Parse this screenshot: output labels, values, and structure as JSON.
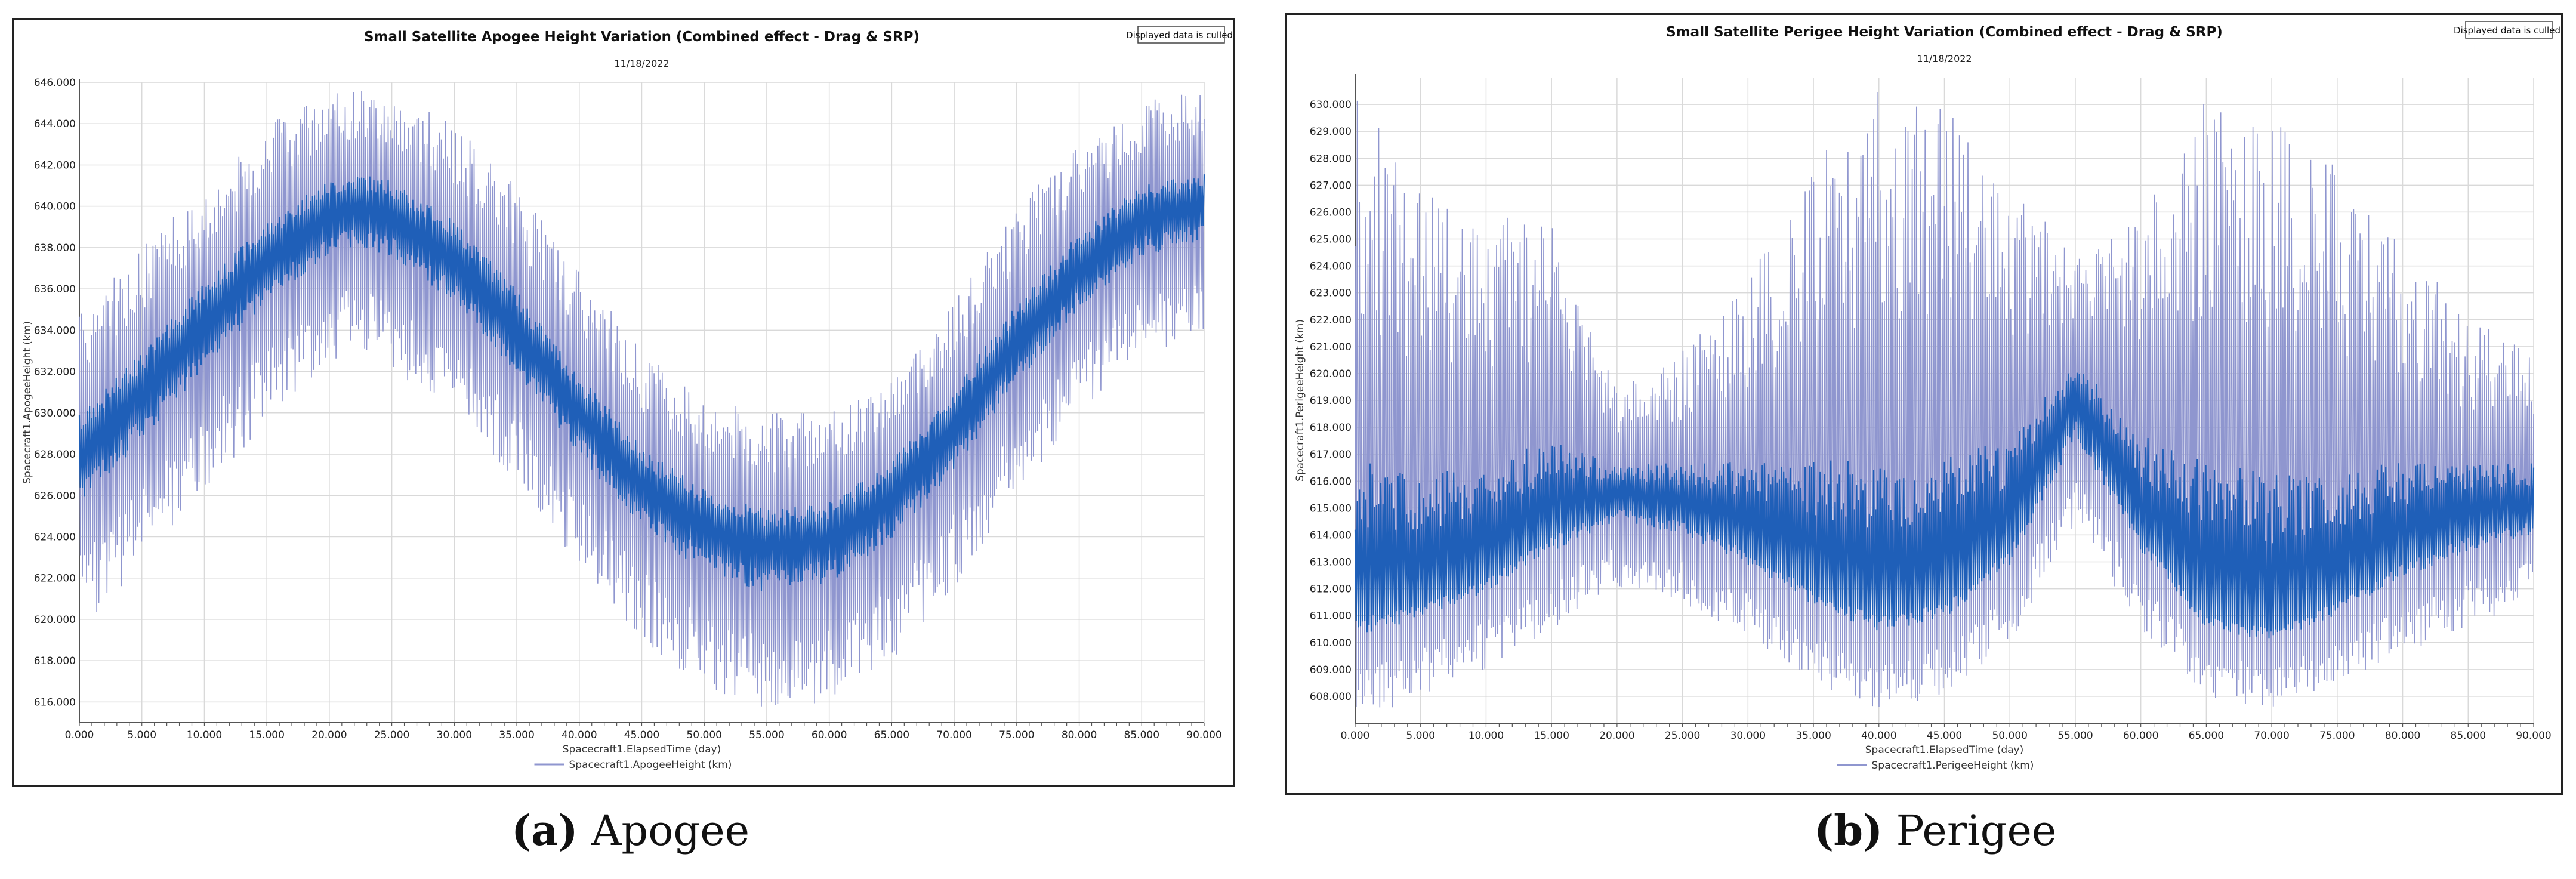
{
  "colors": {
    "series": "#1f5fb8",
    "series_light": "#8f96cf",
    "grid": "#d9d9d9",
    "axis": "#555555"
  },
  "captions": [
    {
      "letter": "(a)",
      "text": "Apogee"
    },
    {
      "letter": "(b)",
      "text": "Perigee"
    }
  ],
  "chart_data": [
    {
      "type": "line",
      "title": "Small Satellite Apogee Height Variation (Combined effect - Drag & SRP)",
      "subtitle": "11/18/2022",
      "xlabel": "Spacecraft1.ElapsedTime (day)",
      "ylabel": "Spacecraft1.ApogeeHeight (km)",
      "xlim": [
        0,
        90
      ],
      "ylim": [
        615,
        646
      ],
      "x_ticks": [
        0,
        5,
        10,
        15,
        20,
        25,
        30,
        35,
        40,
        45,
        50,
        55,
        60,
        65,
        70,
        75,
        80,
        85,
        90
      ],
      "x_tick_labels": [
        "0.000",
        "5.000",
        "10.000",
        "15.000",
        "20.000",
        "25.000",
        "30.000",
        "35.000",
        "40.000",
        "45.000",
        "50.000",
        "55.000",
        "60.000",
        "65.000",
        "70.000",
        "75.000",
        "80.000",
        "85.000",
        "90.000"
      ],
      "y_ticks": [
        616,
        618,
        620,
        622,
        624,
        626,
        628,
        630,
        632,
        634,
        636,
        638,
        640,
        642,
        644,
        646
      ],
      "y_tick_labels": [
        "616.000",
        "618.000",
        "620.000",
        "622.000",
        "624.000",
        "626.000",
        "628.000",
        "630.000",
        "632.000",
        "634.000",
        "636.000",
        "638.000",
        "640.000",
        "642.000",
        "644.000",
        "646.000"
      ],
      "grid": true,
      "legend": "bottom-center",
      "notice": "Displayed data is culled!",
      "series": [
        {
          "name": "Spacecraft1.ApogeeHeight (km)",
          "x": [
            0,
            5,
            10,
            15,
            20,
            22.5,
            25,
            30,
            35,
            40,
            45,
            50,
            55,
            60,
            65,
            70,
            75,
            80,
            85,
            90
          ],
          "mean": [
            628,
            631,
            634.5,
            637.5,
            639.7,
            640,
            639.6,
            637.5,
            634,
            630,
            626.5,
            624.5,
            623.5,
            624,
            626,
            629.5,
            633.5,
            637,
            639.5,
            640
          ],
          "upper": [
            635,
            638,
            641,
            644,
            645.5,
            646,
            645.5,
            644,
            641,
            637,
            633,
            631,
            630,
            630,
            632,
            635.5,
            640,
            643,
            645,
            646
          ],
          "lower": [
            619.5,
            622.5,
            626,
            629.5,
            632.5,
            633,
            632,
            630,
            626.5,
            622.5,
            619,
            616.5,
            615.5,
            616,
            618,
            621.5,
            626,
            630,
            632.5,
            634
          ]
        }
      ]
    },
    {
      "type": "line",
      "title": "Small Satellite Perigee Height Variation (Combined effect - Drag & SRP)",
      "subtitle": "11/18/2022",
      "xlabel": "Spacecraft1.ElapsedTime (day)",
      "ylabel": "Spacecraft1.PerigeeHeight (km)",
      "xlim": [
        0,
        90
      ],
      "ylim": [
        607,
        631
      ],
      "x_ticks": [
        0,
        5,
        10,
        15,
        20,
        25,
        30,
        35,
        40,
        45,
        50,
        55,
        60,
        65,
        70,
        75,
        80,
        85,
        90
      ],
      "x_tick_labels": [
        "0.000",
        "5.000",
        "10.000",
        "15.000",
        "20.000",
        "25.000",
        "30.000",
        "35.000",
        "40.000",
        "45.000",
        "50.000",
        "55.000",
        "60.000",
        "65.000",
        "70.000",
        "75.000",
        "80.000",
        "85.000",
        "90.000"
      ],
      "y_ticks": [
        608,
        609,
        610,
        611,
        612,
        613,
        614,
        615,
        616,
        617,
        618,
        619,
        620,
        621,
        622,
        623,
        624,
        625,
        626,
        627,
        628,
        629,
        630
      ],
      "y_tick_labels": [
        "608.000",
        "609.000",
        "610.000",
        "611.000",
        "612.000",
        "613.000",
        "614.000",
        "615.000",
        "616.000",
        "617.000",
        "618.000",
        "619.000",
        "620.000",
        "621.000",
        "622.000",
        "623.000",
        "624.000",
        "625.000",
        "626.000",
        "627.000",
        "628.000",
        "629.000",
        "630.000"
      ],
      "grid": true,
      "legend": "bottom-center",
      "notice": "Displayed data is culled!",
      "series": [
        {
          "name": "Spacecraft1.PerigeeHeight (km)",
          "x": [
            0,
            5,
            10,
            15,
            20,
            25,
            30,
            35,
            40,
            45,
            50,
            55,
            60,
            65,
            70,
            75,
            80,
            85,
            90
          ],
          "mean": [
            611.5,
            612,
            613,
            614.5,
            615.5,
            615,
            614,
            612.5,
            611.5,
            612,
            614,
            619,
            614.5,
            611.5,
            611,
            612,
            613.5,
            614.5,
            615
          ],
          "upper": [
            630.5,
            627,
            626,
            625.5,
            619.5,
            621,
            624,
            628,
            630.5,
            630,
            627,
            624.5,
            626,
            630.5,
            630,
            628,
            625,
            622,
            621
          ],
          "lower": [
            607,
            608,
            609,
            610.5,
            612,
            611.5,
            610,
            608.5,
            607.5,
            608,
            610,
            614,
            610.5,
            608,
            607.5,
            608.5,
            609.5,
            610.5,
            611.5
          ]
        }
      ]
    }
  ]
}
